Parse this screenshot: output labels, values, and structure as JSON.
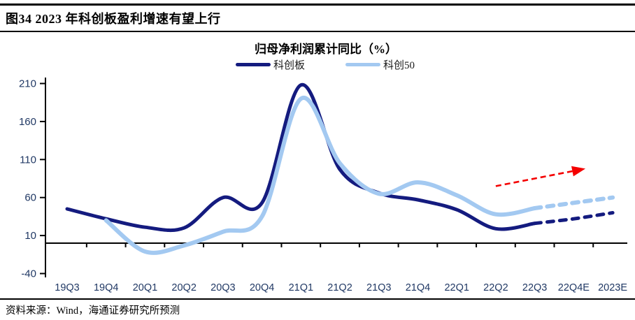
{
  "figure": {
    "title": "图34 2023 年科创板盈利增速有望上行"
  },
  "source": {
    "text": "资料来源：Wind，海通证券研究所预测"
  },
  "colors": {
    "axis": "#000000",
    "tick_label": "#203864",
    "background": "#FFFFFF",
    "arrow": "#F40000",
    "series_dark": "#141B7F",
    "series_light": "#A3C9F1"
  },
  "chart_data": {
    "type": "line",
    "title": "归母净利润累计同比（%）",
    "categories": [
      "19Q3",
      "19Q4",
      "20Q1",
      "20Q2",
      "20Q3",
      "20Q4",
      "21Q1",
      "21Q2",
      "21Q3",
      "21Q4",
      "22Q1",
      "22Q2",
      "22Q3",
      "22Q4E",
      "2023E"
    ],
    "y_ticks": [
      210,
      160,
      110,
      60,
      10,
      -40
    ],
    "ylim": [
      -40,
      215
    ],
    "grid": false,
    "zero_line": true,
    "legend_position": "top",
    "solid_until_category": "22Q3",
    "forecast_categories": [
      "22Q4E",
      "2023E"
    ],
    "series": [
      {
        "name": "科创板",
        "color": "#141B7F",
        "line_style": "solid-then-dashed",
        "start_index": 0,
        "values": [
          45,
          32,
          21,
          20,
          60,
          53,
          208,
          97,
          66,
          57,
          44,
          19,
          26,
          32,
          40
        ]
      },
      {
        "name": "科创50",
        "color": "#A3C9F1",
        "line_style": "solid-then-dashed",
        "start_index": 1,
        "values": [
          30,
          -11,
          -3,
          15,
          35,
          190,
          105,
          65,
          80,
          63,
          38,
          46,
          53,
          60
        ]
      }
    ],
    "annotation": {
      "type": "arrow",
      "style": "dashed",
      "color": "#F40000",
      "from": {
        "category_index": 11.0,
        "value": 75
      },
      "to": {
        "category_index": 13.3,
        "value": 98
      }
    }
  }
}
